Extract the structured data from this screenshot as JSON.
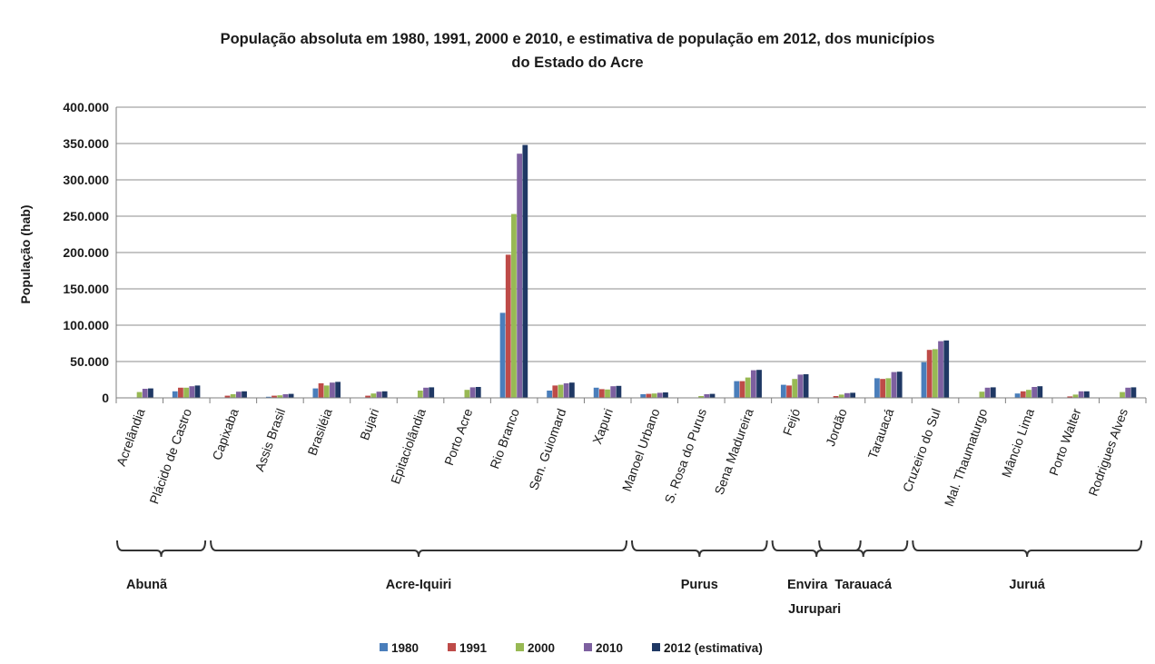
{
  "chart_data": {
    "type": "bar",
    "title_lines": [
      "População absoluta em 1980, 1991, 2000 e 2010, e estimativa de população em 2012, dos municípios",
      "do Estado do Acre"
    ],
    "ylabel": "População (hab)",
    "ylim": [
      0,
      400000
    ],
    "yticks": [
      {
        "value": 0,
        "label": "0"
      },
      {
        "value": 50000,
        "label": "50.000"
      },
      {
        "value": 100000,
        "label": "100.000"
      },
      {
        "value": 150000,
        "label": "150.000"
      },
      {
        "value": 200000,
        "label": "200.000"
      },
      {
        "value": 250000,
        "label": "250.000"
      },
      {
        "value": 300000,
        "label": "300.000"
      },
      {
        "value": 350000,
        "label": "350.000"
      },
      {
        "value": 400000,
        "label": "400.000"
      }
    ],
    "grid": true,
    "legend_position": "bottom",
    "categories": [
      "Acrelândia",
      "Plácido de Castro",
      "Capixaba",
      "Assis Brasil",
      "Brasiléia",
      "Bujari",
      "Epitaciolândia",
      "Porto Acre",
      "Rio Branco",
      "Sen. Guiomard",
      "Xapuri",
      "Manoel Urbano",
      "S. Rosa do Purus",
      "Sena Madureira",
      "Feijó",
      "Jordão",
      "Tarauacá",
      "Cruzeiro do Sul",
      "Mal. Thaumaturgo",
      "Mâncio Lima",
      "Porto Walter",
      "Rodrigues Alves"
    ],
    "series": [
      {
        "name": "1980",
        "color": "#4a7ebb",
        "values": [
          0,
          9000,
          0,
          1500,
          13000,
          0,
          0,
          0,
          117000,
          10000,
          14000,
          5000,
          0,
          23000,
          18000,
          0,
          27000,
          49000,
          0,
          6000,
          0,
          0
        ]
      },
      {
        "name": "1991",
        "color": "#be4b48",
        "values": [
          0,
          14000,
          3000,
          3000,
          20000,
          3000,
          0,
          0,
          197000,
          17000,
          12000,
          5500,
          500,
          23000,
          17000,
          2500,
          26000,
          66000,
          0,
          9000,
          2000,
          0
        ]
      },
      {
        "name": "2000",
        "color": "#98b954",
        "values": [
          8000,
          14000,
          5000,
          3500,
          17000,
          6000,
          10000,
          11000,
          253000,
          18000,
          11500,
          6000,
          2500,
          28000,
          26000,
          4500,
          27000,
          67000,
          8500,
          11000,
          4500,
          8000
        ]
      },
      {
        "name": "2010",
        "color": "#7d60a0",
        "values": [
          12500,
          16000,
          8500,
          5000,
          21000,
          8500,
          14000,
          14500,
          336000,
          20000,
          16000,
          7000,
          5000,
          38000,
          32000,
          6500,
          35500,
          78000,
          14000,
          15000,
          9000,
          14000
        ]
      },
      {
        "name": "2012 (estimativa)",
        "color": "#1f3864",
        "values": [
          13000,
          17000,
          9000,
          5500,
          22000,
          9000,
          14500,
          15000,
          348000,
          21000,
          16500,
          7500,
          5500,
          38500,
          32500,
          7000,
          36000,
          79000,
          14500,
          16000,
          9000,
          14500
        ]
      }
    ],
    "regions": [
      {
        "name": "Abunã",
        "start": 0,
        "end": 1
      },
      {
        "name": "Acre-Iquiri",
        "start": 2,
        "end": 10
      },
      {
        "name": "Purus",
        "start": 11,
        "end": 13
      },
      {
        "name": "Envira Jurupari",
        "label_lines": [
          "Envira",
          "Jurupari"
        ],
        "start": 14,
        "end": 15
      },
      {
        "name": "Tarauacá",
        "start": 15,
        "end": 16
      },
      {
        "name": "Juruá",
        "start": 17,
        "end": 21
      }
    ]
  }
}
